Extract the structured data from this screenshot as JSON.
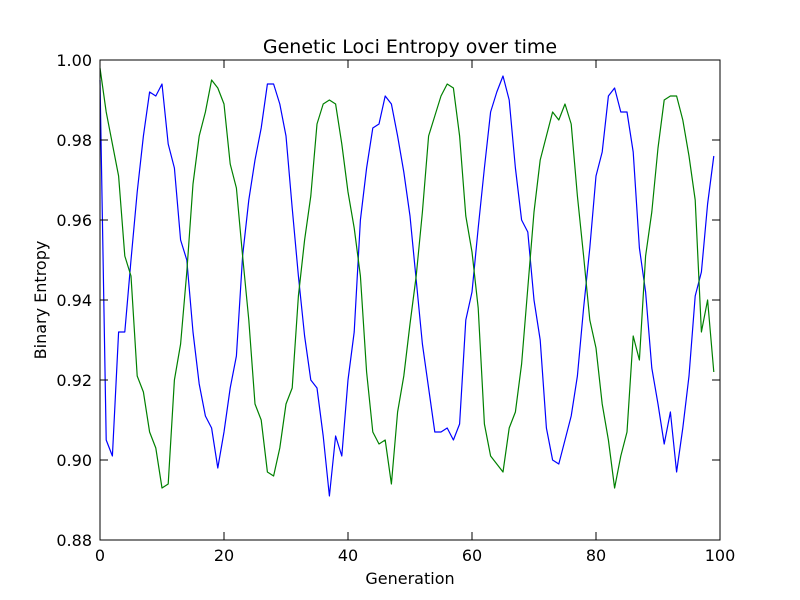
{
  "chart_data": {
    "type": "line",
    "title": "Genetic Loci Entropy over time",
    "xlabel": "Generation",
    "ylabel": "Binary Entropy",
    "xlim": [
      0,
      100
    ],
    "ylim": [
      0.88,
      1.0
    ],
    "x_ticks": [
      "0",
      "20",
      "40",
      "60",
      "80",
      "100"
    ],
    "y_ticks": [
      "0.88",
      "0.90",
      "0.92",
      "0.94",
      "0.96",
      "0.98",
      "1.00"
    ],
    "grid": false,
    "legend": "none",
    "series": [
      {
        "color": "#0000ff",
        "x": [
          0,
          1,
          2,
          3,
          4,
          5,
          6,
          7,
          8,
          9,
          10,
          11,
          12,
          13,
          14,
          15,
          16,
          17,
          18,
          19,
          20,
          21,
          22,
          23,
          24,
          25,
          26,
          27,
          28,
          29,
          30,
          31,
          32,
          33,
          34,
          35,
          36,
          37,
          38,
          39,
          40,
          41,
          42,
          43,
          44,
          45,
          46,
          47,
          48,
          49,
          50,
          51,
          52,
          53,
          54,
          55,
          56,
          57,
          58,
          59,
          60,
          61,
          62,
          63,
          64,
          65,
          66,
          67,
          68,
          69,
          70,
          71,
          72,
          73,
          74,
          75,
          76,
          77,
          78,
          79,
          80,
          81,
          82,
          83,
          84,
          85,
          86,
          87,
          88,
          89,
          90,
          91,
          92,
          93,
          94,
          95,
          96,
          97,
          98,
          99
        ],
        "values": [
          0.995,
          0.905,
          0.901,
          0.932,
          0.932,
          0.95,
          0.967,
          0.981,
          0.992,
          0.991,
          0.994,
          0.979,
          0.973,
          0.955,
          0.95,
          0.932,
          0.919,
          0.911,
          0.908,
          0.898,
          0.907,
          0.918,
          0.926,
          0.951,
          0.965,
          0.975,
          0.983,
          0.994,
          0.994,
          0.989,
          0.981,
          0.963,
          0.946,
          0.931,
          0.92,
          0.918,
          0.906,
          0.891,
          0.906,
          0.901,
          0.92,
          0.932,
          0.96,
          0.973,
          0.983,
          0.984,
          0.991,
          0.989,
          0.981,
          0.972,
          0.961,
          0.945,
          0.929,
          0.918,
          0.907,
          0.907,
          0.908,
          0.905,
          0.909,
          0.935,
          0.942,
          0.958,
          0.973,
          0.987,
          0.992,
          0.996,
          0.99,
          0.973,
          0.96,
          0.957,
          0.94,
          0.93,
          0.908,
          0.9,
          0.899,
          0.905,
          0.911,
          0.921,
          0.938,
          0.953,
          0.971,
          0.977,
          0.991,
          0.993,
          0.987,
          0.987,
          0.977,
          0.953,
          0.942,
          0.923,
          0.914,
          0.904,
          0.912,
          0.897,
          0.908,
          0.921,
          0.941,
          0.947,
          0.964,
          0.976
        ]
      },
      {
        "color": "#008000",
        "x": [
          0,
          1,
          2,
          3,
          4,
          5,
          6,
          7,
          8,
          9,
          10,
          11,
          12,
          13,
          14,
          15,
          16,
          17,
          18,
          19,
          20,
          21,
          22,
          23,
          24,
          25,
          26,
          27,
          28,
          29,
          30,
          31,
          32,
          33,
          34,
          35,
          36,
          37,
          38,
          39,
          40,
          41,
          42,
          43,
          44,
          45,
          46,
          47,
          48,
          49,
          50,
          51,
          52,
          53,
          54,
          55,
          56,
          57,
          58,
          59,
          60,
          61,
          62,
          63,
          64,
          65,
          66,
          67,
          68,
          69,
          70,
          71,
          72,
          73,
          74,
          75,
          76,
          77,
          78,
          79,
          80,
          81,
          82,
          83,
          84,
          85,
          86,
          87,
          88,
          89,
          90,
          91,
          92,
          93,
          94,
          95,
          96,
          97,
          98,
          99
        ],
        "values": [
          0.998,
          0.987,
          0.979,
          0.971,
          0.951,
          0.946,
          0.921,
          0.917,
          0.907,
          0.903,
          0.893,
          0.894,
          0.92,
          0.929,
          0.947,
          0.969,
          0.981,
          0.987,
          0.995,
          0.993,
          0.989,
          0.974,
          0.968,
          0.951,
          0.935,
          0.914,
          0.91,
          0.897,
          0.896,
          0.903,
          0.914,
          0.918,
          0.941,
          0.955,
          0.966,
          0.984,
          0.989,
          0.99,
          0.989,
          0.979,
          0.967,
          0.958,
          0.946,
          0.922,
          0.907,
          0.904,
          0.905,
          0.894,
          0.912,
          0.921,
          0.934,
          0.946,
          0.962,
          0.981,
          0.986,
          0.991,
          0.994,
          0.993,
          0.981,
          0.961,
          0.952,
          0.938,
          0.909,
          0.901,
          0.899,
          0.897,
          0.908,
          0.912,
          0.924,
          0.943,
          0.962,
          0.975,
          0.981,
          0.987,
          0.985,
          0.989,
          0.984,
          0.966,
          0.951,
          0.935,
          0.928,
          0.914,
          0.905,
          0.893,
          0.901,
          0.907,
          0.931,
          0.925,
          0.951,
          0.962,
          0.978,
          0.99,
          0.991,
          0.991,
          0.985,
          0.976,
          0.965,
          0.932,
          0.94,
          0.922
        ]
      }
    ]
  }
}
